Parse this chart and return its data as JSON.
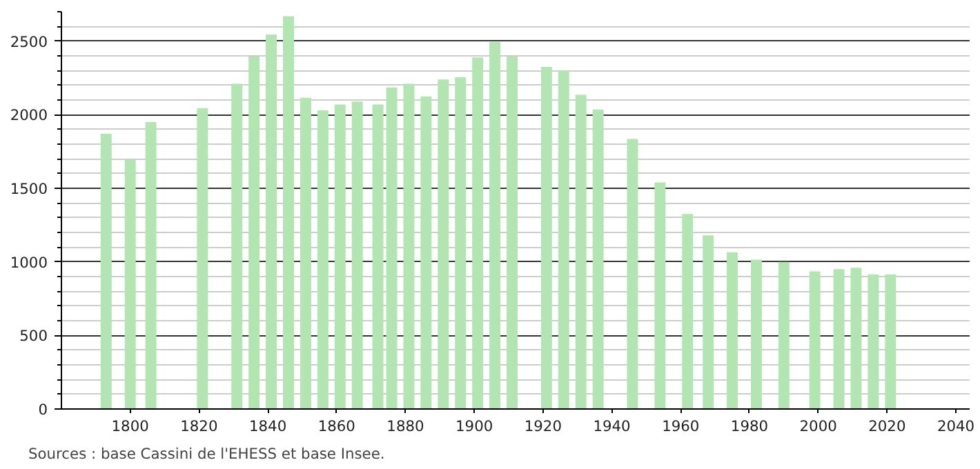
{
  "chart_data": {
    "type": "bar",
    "annotations": [
      "Sources : base Cassini de l'EHESS et base Insee."
    ],
    "x": [
      1793,
      1800,
      1806,
      1821,
      1831,
      1836,
      1841,
      1846,
      1851,
      1856,
      1861,
      1866,
      1872,
      1876,
      1881,
      1886,
      1891,
      1896,
      1901,
      1906,
      1911,
      1921,
      1926,
      1931,
      1936,
      1946,
      1954,
      1962,
      1968,
      1975,
      1982,
      1990,
      1999,
      2006,
      2011,
      2016,
      2021
    ],
    "values": [
      1870,
      1695,
      1950,
      2045,
      2210,
      2395,
      2545,
      2670,
      2115,
      2030,
      2070,
      2090,
      2070,
      2185,
      2210,
      2125,
      2240,
      2255,
      2390,
      2495,
      2395,
      2325,
      2300,
      2135,
      2035,
      1835,
      1540,
      1325,
      1180,
      1065,
      1015,
      1000,
      935,
      950,
      960,
      915,
      915
    ],
    "color": "#b2e5b2",
    "xlim": [
      1780,
      2044
    ],
    "ylim": [
      0,
      2700
    ],
    "xticks": [
      1800,
      1820,
      1840,
      1860,
      1880,
      1900,
      1920,
      1940,
      1960,
      1980,
      2000,
      2020,
      2040
    ],
    "yticks": [
      0,
      500,
      1000,
      1500,
      2000,
      2500
    ],
    "grid": "y"
  }
}
